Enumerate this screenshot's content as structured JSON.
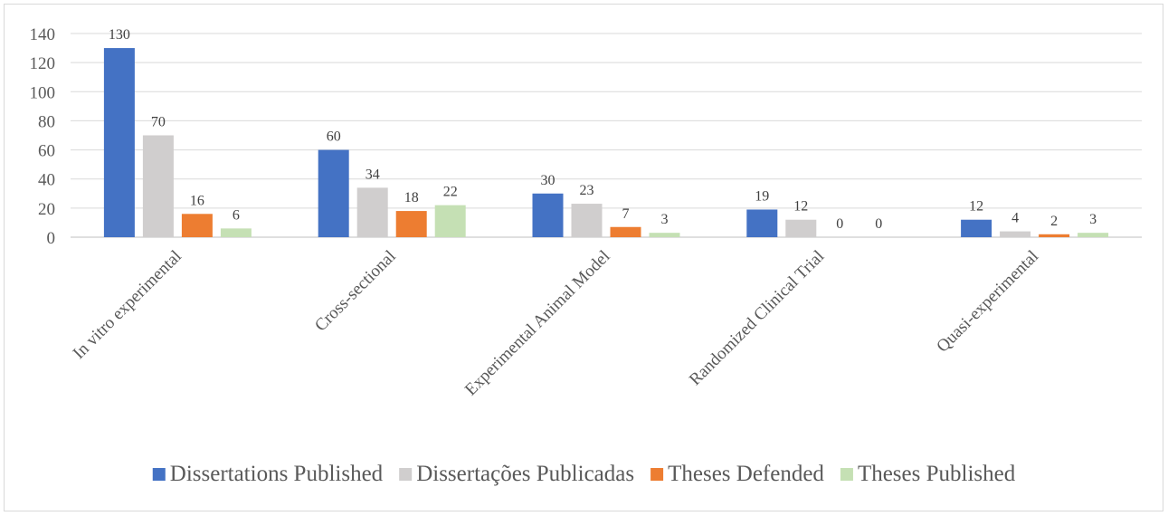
{
  "chart_data": {
    "type": "bar",
    "title": "",
    "xlabel": "",
    "ylabel": "",
    "categories": [
      "In vitro experimental",
      "Cross-sectional",
      "Experimental Animal Model",
      "Randomized Clinical Trial",
      "Quasi-experimental"
    ],
    "series": [
      {
        "name": "Dissertations Published",
        "color": "#4472C4",
        "values": [
          130,
          60,
          30,
          19,
          12
        ]
      },
      {
        "name": "Dissertações Publicadas",
        "color": "#D0CECE",
        "values": [
          70,
          34,
          23,
          12,
          4
        ]
      },
      {
        "name": "Theses Defended",
        "color": "#ED7D31",
        "values": [
          16,
          18,
          7,
          0,
          2
        ]
      },
      {
        "name": "Theses Published",
        "color": "#C5E0B4",
        "values": [
          6,
          22,
          3,
          0,
          3
        ]
      }
    ],
    "ylim": [
      0,
      140
    ],
    "yticks": [
      0,
      20,
      40,
      60,
      80,
      100,
      120,
      140
    ],
    "grid": true,
    "legend_position": "bottom"
  }
}
